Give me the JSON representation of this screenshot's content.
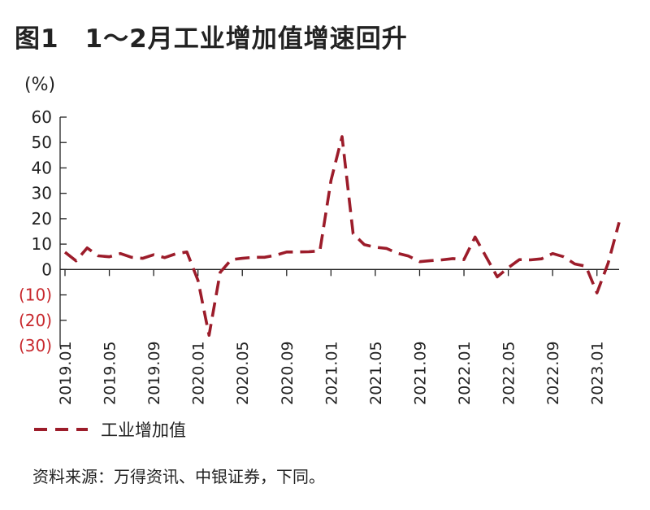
{
  "title": "图1　1～2月工业增加值增速回升",
  "unit": "(%)",
  "legend": {
    "label": "工业增加值"
  },
  "source": "资料来源：万得资讯、中银证券，下同。",
  "colors": {
    "series": "#9c1c2a",
    "negative_tick": "#c8282d",
    "axis": "#222222"
  },
  "chart_data": {
    "type": "line",
    "ylim": [
      -30,
      60
    ],
    "y_ticks": [
      {
        "value": 60,
        "label": "60"
      },
      {
        "value": 50,
        "label": "50"
      },
      {
        "value": 40,
        "label": "40"
      },
      {
        "value": 30,
        "label": "30"
      },
      {
        "value": 20,
        "label": "20"
      },
      {
        "value": 10,
        "label": "10"
      },
      {
        "value": 0,
        "label": "0"
      },
      {
        "value": -10,
        "label": "(10)"
      },
      {
        "value": -20,
        "label": "(20)"
      },
      {
        "value": -30,
        "label": "(30)"
      }
    ],
    "x_tick_labels": [
      "2019.01",
      "2019.05",
      "2019.09",
      "2020.01",
      "2020.05",
      "2020.09",
      "2021.01",
      "2021.05",
      "2021.09",
      "2022.01",
      "2022.05",
      "2022.09",
      "2023.01"
    ],
    "series": [
      {
        "name": "工业增加值",
        "line_style": "dashed",
        "x": [
          "2019.01",
          "2019.02",
          "2019.03",
          "2019.04",
          "2019.05",
          "2019.06",
          "2019.07",
          "2019.08",
          "2019.09",
          "2019.10",
          "2019.11",
          "2019.12",
          "2020.01",
          "2020.02",
          "2020.03",
          "2020.04",
          "2020.05",
          "2020.06",
          "2020.07",
          "2020.08",
          "2020.09",
          "2020.10",
          "2020.11",
          "2020.12",
          "2021.01",
          "2021.02",
          "2021.03",
          "2021.04",
          "2021.05",
          "2021.06",
          "2021.07",
          "2021.08",
          "2021.09",
          "2021.10",
          "2021.11",
          "2021.12",
          "2022.01",
          "2022.02",
          "2022.03",
          "2022.04",
          "2022.05",
          "2022.06",
          "2022.07",
          "2022.08",
          "2022.09",
          "2022.10",
          "2022.11",
          "2022.12",
          "2023.01",
          "2023.02",
          "2023.03"
        ],
        "values": [
          6.8,
          3.4,
          8.5,
          5.4,
          5.0,
          6.3,
          4.8,
          4.4,
          5.8,
          4.7,
          6.2,
          6.9,
          -4.3,
          -25.9,
          -1.1,
          3.9,
          4.4,
          4.8,
          4.8,
          5.6,
          6.9,
          6.9,
          7.0,
          7.3,
          35.1,
          52.3,
          14.1,
          9.8,
          8.8,
          8.3,
          6.4,
          5.3,
          3.1,
          3.5,
          3.8,
          4.3,
          3.9,
          12.8,
          5.0,
          -2.9,
          0.7,
          3.9,
          3.8,
          4.2,
          6.3,
          5.0,
          2.2,
          1.3,
          -9.2,
          2.4,
          18.6
        ]
      }
    ]
  }
}
